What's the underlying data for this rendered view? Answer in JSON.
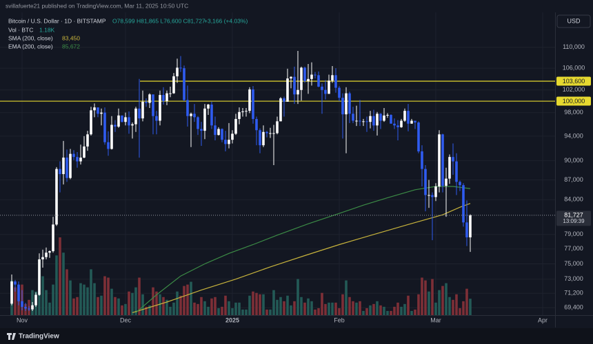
{
  "header": {
    "published": "svillafuerte21 published on TradingView.com, Mar 11, 2025 10:50 UTC",
    "symbol": "Bitcoin / U.S. Dollar · 1D · BITSTAMP",
    "ohlc": "O78,599  H81,865  L76,600  C81,727",
    "change": "+3,166 (+4.03%)",
    "currency": "USD",
    "footer": "TradingView"
  },
  "chart_data": {
    "type": "candlestick",
    "x": [
      0,
      1,
      2,
      3,
      4,
      5,
      6,
      7,
      8,
      9,
      10,
      11,
      12,
      13,
      14,
      15,
      16,
      17,
      18,
      19,
      20,
      21,
      22,
      23,
      24,
      25,
      26,
      27,
      28,
      29,
      30,
      31,
      32,
      33,
      34,
      35,
      36,
      37,
      38,
      39,
      40,
      41,
      42,
      43,
      44,
      45,
      46,
      47,
      48,
      49,
      50,
      51,
      52,
      53,
      54,
      55,
      56,
      57,
      58,
      59,
      60,
      61,
      62,
      63,
      64,
      65,
      66,
      67,
      68,
      69,
      70,
      71,
      72,
      73,
      74,
      75,
      76,
      77,
      78,
      79,
      80,
      81,
      82,
      83,
      84,
      85,
      86,
      87,
      88,
      89,
      90,
      91,
      92,
      93,
      94,
      95,
      96,
      97,
      98,
      99,
      100,
      101,
      102,
      103,
      104,
      105,
      106,
      107,
      108,
      109,
      110,
      111,
      112,
      113,
      114,
      115,
      116,
      117,
      118,
      119,
      120,
      121,
      122,
      123,
      124,
      125,
      126,
      127,
      128,
      129,
      130,
      131,
      132,
      133
    ],
    "open": [
      69900,
      72700,
      72300,
      70200,
      69500,
      69300,
      69200,
      69700,
      71000,
      75600,
      75900,
      76500,
      76700,
      80400,
      88700,
      87900,
      90500,
      87300,
      91100,
      90600,
      89900,
      90500,
      92300,
      94300,
      98400,
      98900,
      97800,
      98000,
      93000,
      91900,
      95900,
      95600,
      97500,
      96400,
      97200,
      95800,
      96000,
      98700,
      97000,
      99900,
      99700,
      101200,
      97400,
      96600,
      101100,
      100000,
      101400,
      101400,
      104500,
      106100,
      106000,
      100200,
      97400,
      97800,
      97200,
      95200,
      94900,
      98700,
      99400,
      95800,
      94200,
      95200,
      93400,
      92700,
      93400,
      94400,
      96900,
      98100,
      98200,
      98300,
      102100,
      96900,
      95000,
      92500,
      94700,
      94500,
      94500,
      94500,
      96500,
      100500,
      99900,
      104100,
      104400,
      101200,
      102000,
      106100,
      103600,
      104000,
      104800,
      104700,
      102600,
      102000,
      101300,
      103700,
      104700,
      102400,
      100600,
      97700,
      101400,
      97800,
      96600,
      96600,
      96500,
      96500,
      96400,
      97400,
      95800,
      97800,
      96600,
      97500,
      97600,
      96100,
      95800,
      95500,
      96600,
      98300,
      96100,
      96600,
      96300,
      91500,
      88700,
      84700,
      84700,
      84400,
      86000,
      94300,
      86100,
      87200,
      90600,
      89900,
      86700,
      86200,
      80700,
      78599
    ],
    "high": [
      73600,
      72900,
      72700,
      71600,
      70000,
      69600,
      70100,
      71300,
      76400,
      76900,
      77200,
      76800,
      81500,
      89000,
      89900,
      93200,
      91800,
      91900,
      91700,
      91400,
      92600,
      94000,
      94900,
      99000,
      99600,
      98900,
      98700,
      98900,
      94800,
      97400,
      96700,
      98700,
      97500,
      98000,
      98200,
      96300,
      99000,
      104000,
      101900,
      100500,
      101400,
      101200,
      98300,
      101900,
      102500,
      101900,
      102600,
      105100,
      107800,
      108300,
      106500,
      102800,
      98000,
      99500,
      97400,
      96400,
      99500,
      99500,
      99900,
      97300,
      95500,
      95300,
      94900,
      96200,
      95000,
      97800,
      98900,
      98800,
      98800,
      102500,
      102700,
      97300,
      95300,
      95800,
      94900,
      95400,
      95900,
      97300,
      100700,
      100800,
      105900,
      104500,
      106300,
      109300,
      106300,
      106300,
      106800,
      107100,
      105300,
      105400,
      103200,
      103800,
      104800,
      106400,
      106000,
      102700,
      101400,
      102500,
      101700,
      99000,
      99200,
      100200,
      96900,
      97300,
      98300,
      98500,
      98100,
      97900,
      98800,
      97900,
      97700,
      97000,
      96700,
      96900,
      98700,
      99500,
      96900,
      96600,
      96500,
      92500,
      89300,
      87000,
      85100,
      86500,
      95000,
      94400,
      88900,
      91000,
      92800,
      91200,
      86900,
      86500,
      83900,
      81865
    ],
    "low": [
      69700,
      71400,
      69700,
      69100,
      69000,
      69000,
      69000,
      69500,
      70900,
      74500,
      75600,
      75800,
      76500,
      80200,
      85100,
      86300,
      86700,
      87100,
      90100,
      88900,
      89400,
      90400,
      91600,
      94100,
      97200,
      97200,
      95800,
      92600,
      90800,
      91800,
      94700,
      95400,
      96300,
      95800,
      94400,
      93600,
      94700,
      90500,
      96500,
      99000,
      98800,
      94300,
      94300,
      95800,
      99400,
      99300,
      100700,
      101300,
      103300,
      105300,
      100000,
      95600,
      92200,
      96400,
      94200,
      92400,
      93500,
      97600,
      95200,
      93300,
      94100,
      93000,
      91500,
      92000,
      92800,
      94200,
      96000,
      97300,
      97300,
      97900,
      96100,
      92500,
      91200,
      92200,
      93800,
      93700,
      89300,
      94300,
      96500,
      97300,
      99900,
      102300,
      99500,
      99500,
      100100,
      103300,
      101300,
      102800,
      104100,
      102500,
      97800,
      100300,
      101300,
      103300,
      101500,
      100000,
      93600,
      91200,
      96200,
      96200,
      95700,
      95700,
      95700,
      94700,
      95300,
      94900,
      94100,
      95200,
      96400,
      97100,
      96100,
      95200,
      93300,
      95400,
      96400,
      94800,
      96100,
      95200,
      91200,
      86000,
      82300,
      82800,
      78200,
      83800,
      85100,
      85100,
      81500,
      86400,
      87800,
      84700,
      85300,
      80100,
      77400,
      76600
    ],
    "close": [
      72700,
      72300,
      70200,
      69500,
      69300,
      69200,
      69700,
      71000,
      75600,
      75900,
      76500,
      76700,
      80400,
      88700,
      87900,
      90500,
      87300,
      91100,
      90600,
      89900,
      90500,
      92300,
      94300,
      98400,
      98900,
      97800,
      98000,
      93000,
      91900,
      95900,
      95600,
      97500,
      96400,
      97200,
      95800,
      96000,
      98700,
      97000,
      99900,
      99700,
      101200,
      97400,
      96600,
      101100,
      100000,
      101400,
      101400,
      104500,
      106100,
      106000,
      100200,
      97400,
      97800,
      97200,
      95200,
      94900,
      98700,
      99400,
      95800,
      94200,
      95200,
      93400,
      92700,
      93400,
      94400,
      96900,
      98100,
      98200,
      98300,
      102100,
      96900,
      95000,
      92500,
      94700,
      94500,
      94500,
      94500,
      96500,
      100500,
      99900,
      104100,
      104400,
      101200,
      102000,
      106100,
      103600,
      104000,
      104800,
      104700,
      102600,
      102000,
      101300,
      103700,
      104700,
      102400,
      100600,
      97700,
      101400,
      97800,
      96600,
      96600,
      96500,
      96500,
      96400,
      97400,
      95800,
      97800,
      96600,
      97500,
      97600,
      96100,
      95800,
      95500,
      96600,
      98300,
      96100,
      96600,
      96300,
      91500,
      88700,
      84700,
      84700,
      84400,
      86000,
      94300,
      86100,
      87200,
      90600,
      89900,
      86700,
      86200,
      80700,
      78600,
      81727
    ],
    "volume": [
      2500,
      2000,
      1900,
      2200,
      800,
      1100,
      1800,
      1700,
      4000,
      2800,
      1800,
      900,
      2200,
      4300,
      5600,
      4500,
      3300,
      2500,
      1200,
      1300,
      2300,
      2200,
      2000,
      3300,
      2300,
      1300,
      1400,
      2800,
      2700,
      1900,
      1300,
      1200,
      700,
      800,
      1700,
      1600,
      2000,
      2700,
      1500,
      600,
      700,
      2000,
      1700,
      1500,
      1300,
      1100,
      600,
      900,
      1700,
      1400,
      2100,
      2200,
      2400,
      900,
      800,
      1300,
      1000,
      600,
      1200,
      1300,
      500,
      600,
      1400,
      1000,
      500,
      900,
      900,
      400,
      400,
      1400,
      1700,
      1600,
      1500,
      1500,
      400,
      400,
      1800,
      1100,
      1300,
      1000,
      1400,
      700,
      1000,
      2600,
      1300,
      900,
      1200,
      1000,
      400,
      500,
      1600,
      800,
      900,
      900,
      900,
      500,
      1500,
      2500,
      1300,
      1000,
      900,
      1000,
      300,
      500,
      700,
      800,
      1000,
      700,
      600,
      300,
      300,
      600,
      900,
      600,
      800,
      1400,
      300,
      400,
      1500,
      2700,
      2500,
      1700,
      2600,
      900,
      1800,
      2100,
      2300,
      1300,
      1100,
      1500,
      500,
      1000,
      1900,
      1180
    ],
    "up_color": "#ffffff",
    "down_color": "#2f5bf0",
    "volume_up_color": "#235a56",
    "volume_down_color": "#7d2f37",
    "volume_label": "Vol · BTC",
    "volume_value_label": "1.18K",
    "indicators": [
      {
        "name": "SMA (200, close)",
        "value_label": "83,450",
        "color": "#c8b43c",
        "x": [
          35,
          45,
          55,
          65,
          75,
          85,
          95,
          105,
          115,
          125,
          130,
          133
        ],
        "values": [
          68800,
          70100,
          71600,
          73000,
          74600,
          76100,
          77600,
          79000,
          80400,
          81800,
          82900,
          83450
        ]
      },
      {
        "name": "EMA (200, close)",
        "value_label": "85,672",
        "color": "#3c8c46",
        "x": [
          36,
          42,
          49,
          56,
          63,
          70,
          77,
          86,
          95,
          102,
          109,
          117,
          123,
          128,
          133
        ],
        "values": [
          68800,
          71000,
          73400,
          75000,
          76400,
          77600,
          78900,
          80500,
          82000,
          83200,
          84300,
          85500,
          86000,
          86000,
          85672
        ]
      }
    ],
    "hlines": [
      {
        "value": 103600,
        "label": "103,600"
      },
      {
        "value": 100000,
        "label": "100,000"
      }
    ],
    "hline_color": "#e6d930",
    "last_price_label": "81,727",
    "countdown": "13:09:39",
    "log_scale": true,
    "grid": true,
    "ylim": [
      68500,
      117000
    ],
    "yticks": [
      {
        "value": 110000,
        "label": "110,000"
      },
      {
        "value": 106000,
        "label": "106,000"
      },
      {
        "value": 102000,
        "label": "102,000"
      },
      {
        "value": 98000,
        "label": "98,000"
      },
      {
        "value": 94000,
        "label": "94,000"
      },
      {
        "value": 90000,
        "label": "90,000"
      },
      {
        "value": 87000,
        "label": "87,000"
      },
      {
        "value": 84000,
        "label": "84,000"
      },
      {
        "value": 79000,
        "label": "79,000"
      },
      {
        "value": 77000,
        "label": "77,000"
      },
      {
        "value": 75000,
        "label": "75,000"
      },
      {
        "value": 73000,
        "label": "73,000"
      },
      {
        "value": 71200,
        "label": "71,200"
      },
      {
        "value": 69400,
        "label": "69,400"
      }
    ],
    "xlim": [
      -3.4,
      157.6
    ],
    "xticks": [
      {
        "value": 3,
        "label": "Nov"
      },
      {
        "value": 33,
        "label": "Dec"
      },
      {
        "value": 64,
        "label": "2025"
      },
      {
        "value": 95,
        "label": "Feb"
      },
      {
        "value": 123,
        "label": "Mar"
      },
      {
        "value": 154,
        "label": "Apr"
      }
    ]
  }
}
